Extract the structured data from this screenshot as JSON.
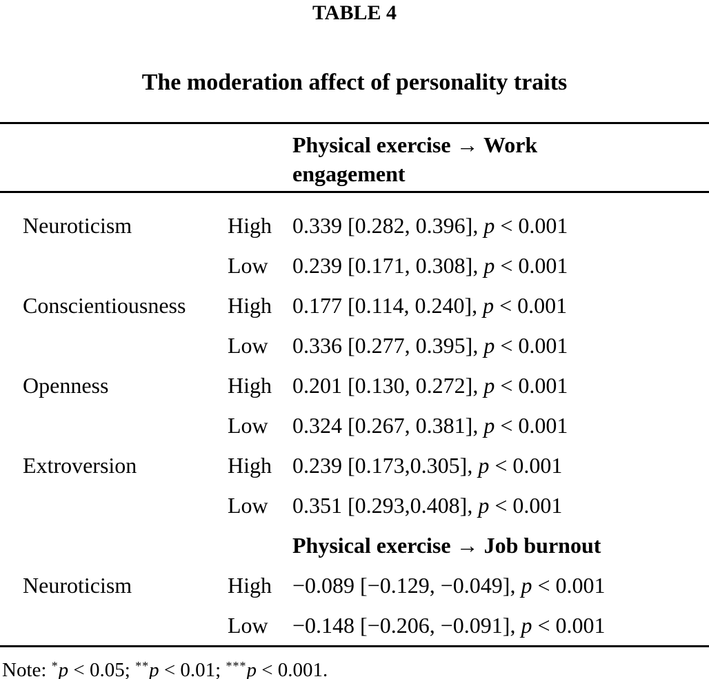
{
  "page": {
    "label": "TABLE 4",
    "title": "The moderation affect of personality traits"
  },
  "table": {
    "sections": [
      {
        "header": "Physical exercise → Work engagement",
        "rows": [
          {
            "trait": "Neuroticism",
            "level": "High",
            "est": "0.339 [0.282, 0.396],",
            "p": "p",
            "tail": "< 0.001"
          },
          {
            "trait": "",
            "level": "Low",
            "est": "0.239 [0.171, 0.308],",
            "p": "p",
            "tail": "< 0.001"
          },
          {
            "trait": "Conscientiousness",
            "level": "High",
            "est": "0.177 [0.114, 0.240],",
            "p": "p",
            "tail": "< 0.001"
          },
          {
            "trait": "",
            "level": "Low",
            "est": "0.336 [0.277, 0.395],",
            "p": "p",
            "tail": "< 0.001"
          },
          {
            "trait": "Openness",
            "level": "High",
            "est": "0.201 [0.130, 0.272],",
            "p": "p",
            "tail": "< 0.001"
          },
          {
            "trait": "",
            "level": "Low",
            "est": "0.324 [0.267, 0.381],",
            "p": "p",
            "tail": "< 0.001"
          },
          {
            "trait": "Extroversion",
            "level": "High",
            "est": "0.239 [0.173,0.305],",
            "p": "p",
            "tail": "< 0.001"
          },
          {
            "trait": "",
            "level": "Low",
            "est": "0.351 [0.293,0.408],",
            "p": "p",
            "tail": "< 0.001"
          }
        ]
      },
      {
        "header": "Physical exercise → Job burnout",
        "rows": [
          {
            "trait": "Neuroticism",
            "level": "High",
            "est": "−0.089 [−0.129, −0.049],",
            "p": "p",
            "tail": "< 0.001"
          },
          {
            "trait": "",
            "level": "Low",
            "est": "−0.148 [−0.206, −0.091],",
            "p": "p",
            "tail": "< 0.001"
          }
        ]
      }
    ]
  },
  "note": {
    "prefix": "Note: ",
    "items": [
      {
        "stars": "*",
        "p": "p",
        "tail": " < 0.05; "
      },
      {
        "stars": "**",
        "p": "p",
        "tail": " < 0.01; "
      },
      {
        "stars": "***",
        "p": "p",
        "tail": " < 0.001."
      }
    ]
  }
}
